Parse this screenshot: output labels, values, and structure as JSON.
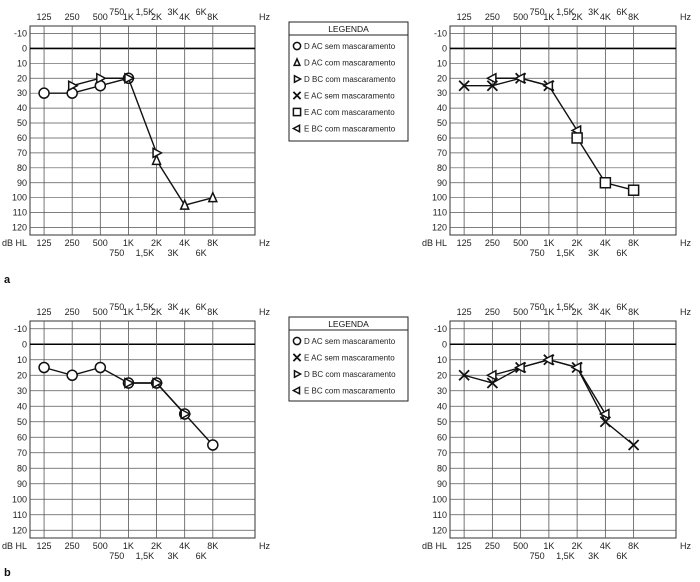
{
  "panel_labels": [
    "a",
    "b"
  ],
  "legends": [
    {
      "title": "LEGENDA",
      "items": [
        {
          "symbol": "circle",
          "text": "D AC sem mascaramento"
        },
        {
          "symbol": "triangle",
          "text": "D AC com mascaramento"
        },
        {
          "symbol": "tri-right",
          "text": "D BC com mascaramento"
        },
        {
          "symbol": "x",
          "text": "E AC sem mascaramento"
        },
        {
          "symbol": "square",
          "text": "E AC com mascaramento"
        },
        {
          "symbol": "tri-left",
          "text": "E BC com mascaramento"
        }
      ]
    },
    {
      "title": "LEGENDA",
      "items": [
        {
          "symbol": "circle",
          "text": "D AC sem mascaramento"
        },
        {
          "symbol": "x",
          "text": "E AC sem mascaramento"
        },
        {
          "symbol": "tri-right",
          "text": "D BC com mascaramento"
        },
        {
          "symbol": "tri-left",
          "text": "E BC com mascaramento"
        }
      ]
    }
  ],
  "chart_data": [
    {
      "type": "line",
      "title": "",
      "y_axis_label": "dB HL",
      "x_axis_label": "Hz",
      "ylim": [
        -10,
        120
      ],
      "yticks": [
        -10,
        0,
        10,
        20,
        30,
        40,
        50,
        60,
        70,
        80,
        90,
        100,
        110,
        120
      ],
      "x_main": [
        "125",
        "250",
        "500",
        "1K",
        "2K",
        "4K",
        "8K"
      ],
      "x_inter": [
        "750",
        "1,5K",
        "3K",
        "6K"
      ],
      "series": [
        {
          "symbol": "circle",
          "x": [
            125,
            250,
            500,
            1000
          ],
          "y": [
            30,
            30,
            25,
            20
          ]
        },
        {
          "symbol": "triangle",
          "x": [
            2000,
            4000,
            8000
          ],
          "y": [
            75,
            105,
            100
          ]
        },
        {
          "symbol": "tri-right",
          "x": [
            250,
            500,
            1000,
            2000
          ],
          "y": [
            25,
            20,
            20,
            70
          ]
        }
      ]
    },
    {
      "type": "line",
      "title": "",
      "y_axis_label": "dB HL",
      "x_axis_label": "Hz",
      "ylim": [
        -10,
        120
      ],
      "yticks": [
        -10,
        0,
        10,
        20,
        30,
        40,
        50,
        60,
        70,
        80,
        90,
        100,
        110,
        120
      ],
      "x_main": [
        "125",
        "250",
        "500",
        "1K",
        "2K",
        "4K",
        "8K"
      ],
      "x_inter": [
        "750",
        "1,5K",
        "3K",
        "6K"
      ],
      "series": [
        {
          "symbol": "x",
          "x": [
            125,
            250,
            500,
            1000
          ],
          "y": [
            25,
            25,
            20,
            25
          ]
        },
        {
          "symbol": "tri-left",
          "x": [
            250,
            500,
            1000,
            2000
          ],
          "y": [
            20,
            20,
            25,
            55
          ]
        },
        {
          "symbol": "square",
          "x": [
            2000,
            4000,
            8000
          ],
          "y": [
            60,
            90,
            95
          ]
        }
      ]
    },
    {
      "type": "line",
      "title": "",
      "y_axis_label": "dB HL",
      "x_axis_label": "Hz",
      "ylim": [
        -10,
        120
      ],
      "yticks": [
        -10,
        0,
        10,
        20,
        30,
        40,
        50,
        60,
        70,
        80,
        90,
        100,
        110,
        120
      ],
      "x_main": [
        "125",
        "250",
        "500",
        "1K",
        "2K",
        "4K",
        "8K"
      ],
      "x_inter": [
        "750",
        "1,5K",
        "3K",
        "6K"
      ],
      "series": [
        {
          "symbol": "circle",
          "x": [
            125,
            250,
            500,
            1000,
            2000,
            4000,
            8000
          ],
          "y": [
            15,
            20,
            15,
            25,
            25,
            45,
            65
          ]
        },
        {
          "symbol": "tri-right",
          "x": [
            1000,
            2000,
            4000
          ],
          "y": [
            25,
            25,
            45
          ]
        }
      ]
    },
    {
      "type": "line",
      "title": "",
      "y_axis_label": "dB HL",
      "x_axis_label": "Hz",
      "ylim": [
        -10,
        120
      ],
      "yticks": [
        -10,
        0,
        10,
        20,
        30,
        40,
        50,
        60,
        70,
        80,
        90,
        100,
        110,
        120
      ],
      "x_main": [
        "125",
        "250",
        "500",
        "1K",
        "2K",
        "4K",
        "8K"
      ],
      "x_inter": [
        "750",
        "1,5K",
        "3K",
        "6K"
      ],
      "series": [
        {
          "symbol": "x",
          "x": [
            125,
            250,
            500,
            1000,
            2000,
            4000,
            8000
          ],
          "y": [
            20,
            25,
            15,
            10,
            15,
            50,
            65
          ]
        },
        {
          "symbol": "tri-left",
          "x": [
            250,
            500,
            1000,
            2000,
            4000
          ],
          "y": [
            20,
            15,
            10,
            15,
            45
          ]
        }
      ]
    }
  ]
}
